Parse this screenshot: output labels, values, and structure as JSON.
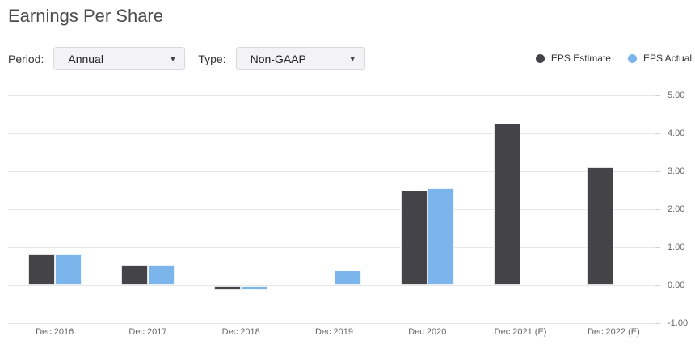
{
  "header": {
    "title": "Earnings Per Share"
  },
  "controls": {
    "period_label": "Period:",
    "period_value": "Annual",
    "type_label": "Type:",
    "type_value": "Non-GAAP",
    "dropdown_arrow": "▼"
  },
  "chart_data": {
    "type": "bar",
    "title": "Earnings Per Share",
    "categories": [
      "Dec 2016",
      "Dec 2017",
      "Dec 2018",
      "Dec 2019",
      "Dec 2020",
      "Dec 2021 (E)",
      "Dec 2022 (E)"
    ],
    "series": [
      {
        "name": "EPS Estimate",
        "color": "#434348",
        "values": [
          0.8,
          0.53,
          -0.1,
          null,
          2.5,
          4.25,
          3.1
        ]
      },
      {
        "name": "EPS Actual",
        "color": "#7cb5ec",
        "values": [
          0.8,
          0.53,
          -0.1,
          0.38,
          2.55,
          null,
          null
        ]
      }
    ],
    "xlabel": "",
    "ylabel": "",
    "ylim": [
      -1.0,
      5.0
    ],
    "y_ticks": [
      5.0,
      4.0,
      3.0,
      2.0,
      1.0,
      0.0,
      -1.0
    ],
    "y_tick_decimals": 2,
    "y_axis_side": "right",
    "grid": true,
    "legend_position": "top-right",
    "grid_color": "#e7e7e7",
    "axis_label_color": "#666666"
  }
}
